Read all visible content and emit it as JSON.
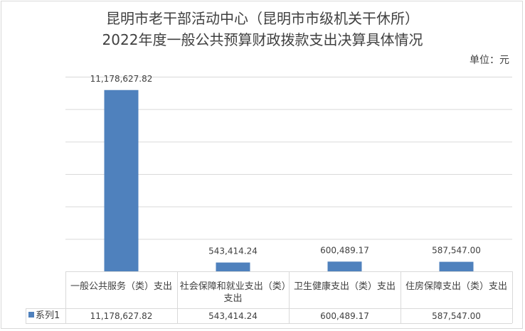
{
  "title_line1": "昆明市老干部活动中心（昆明市市级机关干休所）",
  "title_line2": "2022年度一般公共预算财政拨款支出决算具体情况",
  "unit_label": "单位：元",
  "colors": {
    "bar": "#4f81bd",
    "grid": "#d9d9d9"
  },
  "chart_data": {
    "type": "bar",
    "categories": [
      "一般公共服务（类）支出",
      "社会保障和就业支出（类）支出",
      "卫生健康支出（类）支出",
      "住房保障支出（类）支出"
    ],
    "series": [
      {
        "name": "系列1",
        "values": [
          11178627.82,
          543414.24,
          600489.17,
          587547.0
        ],
        "labels": [
          "11,178,627.82",
          "543,414.24",
          "600,489.17",
          "587,547.00"
        ]
      }
    ],
    "ylim": [
      0,
      12000000
    ],
    "grid": true,
    "legend": "left-of-data-table",
    "data_table": true
  }
}
